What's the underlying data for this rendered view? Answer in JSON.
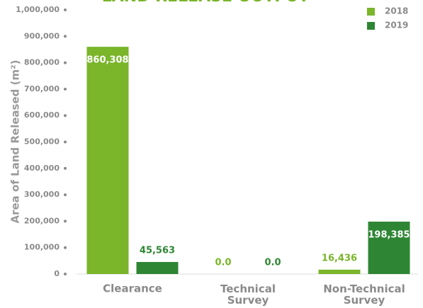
{
  "chart_data": {
    "type": "bar",
    "title": "LAND RELEASE OUTPUT",
    "y_label": "Area of Land Released (m²)",
    "categories": [
      "Clearance",
      "Technical Survey",
      "Non-Technical Survey"
    ],
    "series": [
      {
        "name": "2018",
        "color": "#7ab52a",
        "values": [
          860308,
          0,
          16436
        ],
        "value_labels": [
          "860,308",
          "0.0",
          "16,436"
        ]
      },
      {
        "name": "2019",
        "color": "#2e8634",
        "values": [
          45563,
          0,
          198385
        ],
        "value_labels": [
          "45,563",
          "0.0",
          "198,385"
        ]
      }
    ],
    "ylim": [
      0,
      1000000
    ],
    "yticks": [
      0,
      {
        "value": 100000,
        "label": "100,000"
      },
      {
        "value": 200000,
        "label": "200,000"
      },
      {
        "value": 300000,
        "label": "300,000"
      },
      {
        "value": 400000,
        "label": "400,000"
      },
      {
        "value": 500000,
        "label": "500,000"
      },
      {
        "value": 600000,
        "label": "600,000"
      },
      {
        "value": 700000,
        "label": "700,000"
      },
      {
        "value": 800000,
        "label": "800,000"
      },
      {
        "value": 900000,
        "label": "900,000"
      },
      {
        "value": 1000000,
        "label": "1,000,000"
      }
    ],
    "legend": "top-right"
  }
}
